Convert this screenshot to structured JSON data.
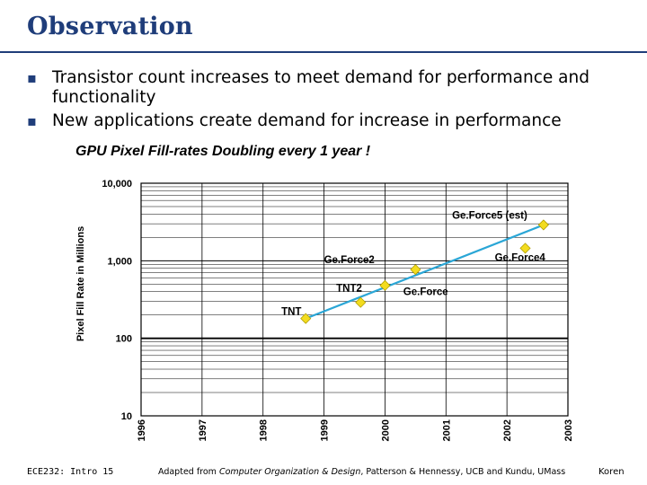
{
  "slide": {
    "title": "Observation",
    "bullets": [
      "Transistor count increases to meet demand for performance and functionality",
      "New applications create demand for increase in performance"
    ],
    "bullet_icon": "square-bullet-icon",
    "accent_color": "#1f3d7a"
  },
  "footer": {
    "left": "ECE232: Intro 15",
    "center_prefix": "Adapted from ",
    "center_italic": "Computer Organization & Design",
    "center_suffix": ", Patterson & Hennessy, UCB and Kundu, UMass",
    "right": "Koren"
  },
  "chart_data": {
    "type": "scatter",
    "title": "GPU Pixel Fill-rates Doubling every 1 year !",
    "xlabel": "",
    "ylabel": "Pixel Fill Rate in Millions",
    "xlim": [
      1996,
      2003
    ],
    "ylim": [
      10,
      10000
    ],
    "yscale": "log",
    "x_ticks": [
      "1996",
      "1997",
      "1998",
      "1999",
      "2000",
      "2001",
      "2002",
      "2003"
    ],
    "y_ticks": [
      "10",
      "100",
      "1,000",
      "10,000"
    ],
    "grid": true,
    "points": [
      {
        "label": "TNT",
        "x": 1998.7,
        "y": 180
      },
      {
        "label": "TNT2",
        "x": 1999.6,
        "y": 290
      },
      {
        "label": "GeForce",
        "x": 2000.0,
        "y": 480
      },
      {
        "label": "GeForce2",
        "x": 2000.5,
        "y": 770
      },
      {
        "label": "GeForce4",
        "x": 2002.3,
        "y": 1450
      },
      {
        "label": "GeForce5 (est)",
        "x": 2002.6,
        "y": 2900
      }
    ],
    "point_labels": [
      {
        "text": "TNT",
        "x": 1998.3,
        "y": 200
      },
      {
        "text": "TNT2",
        "x": 1999.2,
        "y": 400
      },
      {
        "text": "Ge.Force",
        "x": 2000.3,
        "y": 360
      },
      {
        "text": "Ge.Force2",
        "x": 1999.0,
        "y": 930
      },
      {
        "text": "Ge.Force4",
        "x": 2001.8,
        "y": 1000
      },
      {
        "text": "Ge.Force5 (est)",
        "x": 2001.1,
        "y": 3500
      }
    ],
    "trendline": {
      "x": [
        1998.7,
        2002.6
      ],
      "y": [
        180,
        2900
      ]
    },
    "point_color": "#f3dc1f",
    "point_edge_color": "#b29f00",
    "trend_color": "#2aa6d6"
  }
}
